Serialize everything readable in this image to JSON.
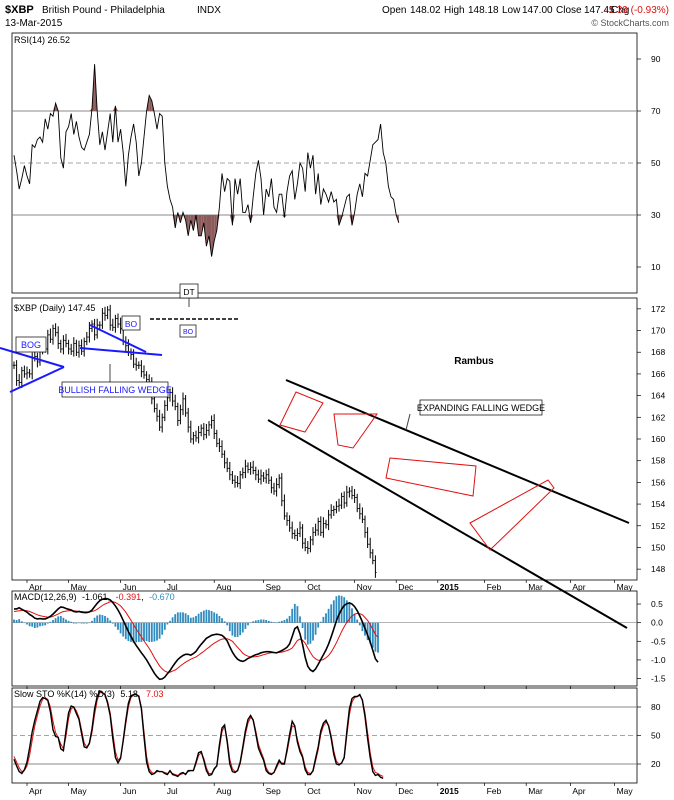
{
  "header": {
    "symbol": "$XBP",
    "name": "British Pound - Philadelphia",
    "exchange": "INDX",
    "date": "13-Mar-2015",
    "open_label": "Open",
    "open": "148.02",
    "high_label": "High",
    "high": "148.18",
    "low_label": "Low",
    "low": "147.00",
    "close_label": "Close",
    "close": "147.45",
    "chg_label": "Chg",
    "chg": "-1.39 (-0.93%)",
    "watermark": "© StockCharts.com"
  },
  "chart_data": [
    {
      "type": "line",
      "panel": "rsi",
      "legend": "RSI(14) 26.52",
      "ylim": [
        0,
        100
      ],
      "yticks": [
        10,
        30,
        50,
        70,
        90
      ],
      "lines": [
        30,
        50,
        70
      ],
      "values": [
        53,
        47,
        40,
        44,
        49,
        45,
        42,
        57,
        56,
        59,
        60,
        58,
        67,
        63,
        69,
        68,
        73,
        70,
        52,
        48,
        62,
        64,
        69,
        61,
        66,
        60,
        56,
        55,
        58,
        61,
        71,
        88,
        70,
        57,
        62,
        55,
        62,
        69,
        58,
        72,
        58,
        63,
        54,
        41,
        53,
        60,
        65,
        58,
        45,
        50,
        60,
        70,
        76,
        74,
        69,
        63,
        69,
        68,
        50,
        41,
        36,
        33,
        25,
        31,
        27,
        31,
        28,
        22,
        28,
        24,
        30,
        22,
        22,
        27,
        18,
        22,
        14,
        20,
        24,
        33,
        46,
        39,
        44,
        43,
        26,
        44,
        38,
        44,
        31,
        31,
        34,
        27,
        37,
        46,
        51,
        44,
        30,
        40,
        37,
        44,
        33,
        31,
        38,
        38,
        29,
        39,
        45,
        47,
        36,
        42,
        50,
        48,
        39,
        54,
        48,
        53,
        38,
        46,
        34,
        40,
        38,
        35,
        39,
        35,
        36,
        26,
        29,
        33,
        37,
        38,
        26,
        31,
        38,
        42,
        37,
        46,
        45,
        51,
        57,
        58,
        59,
        65,
        54,
        50,
        41,
        37,
        36,
        30,
        27
      ]
    },
    {
      "type": "bar",
      "panel": "price",
      "legend": "$XBP (Daily) 147.45",
      "ylim": [
        147,
        173
      ],
      "yticks": [
        148,
        150,
        152,
        154,
        156,
        158,
        160,
        162,
        164,
        166,
        168,
        170,
        172
      ],
      "series": [
        {
          "values": [
            166.8,
            165.4,
            165.2,
            166.3,
            166.0,
            166.1,
            166.0,
            167.5,
            167.6,
            167.1,
            168.3,
            168.6,
            168.3,
            169.6,
            169.2,
            170.2,
            169.8,
            168.8,
            168.3,
            169.1,
            168.8,
            168.3,
            168.1,
            168.8,
            168.0,
            168.6,
            168.1,
            169.0,
            169.4,
            170.2,
            170.6,
            169.6,
            170.5,
            170.5,
            171.6,
            171.4,
            171.9,
            170.5,
            170.3,
            171.1,
            170.6,
            170.2,
            169.0,
            168.6,
            168.0,
            167.8,
            166.9,
            166.8,
            166.8,
            166.2,
            165.9,
            165.5,
            165.1,
            163.7,
            162.8,
            162.1,
            161.1,
            162.0,
            163.1,
            163.8,
            164.3,
            163.5,
            163.0,
            161.7,
            162.7,
            163.7,
            162.4,
            161.1,
            160.0,
            160.3,
            160.1,
            160.6,
            161.0,
            160.4,
            160.8,
            161.3,
            161.7,
            160.5,
            159.6,
            159.3,
            158.6,
            157.8,
            157.3,
            156.7,
            156.2,
            156.0,
            155.9,
            156.7,
            156.9,
            157.5,
            157.2,
            157.4,
            157.1,
            156.7,
            156.3,
            156.6,
            156.4,
            156.7,
            156.2,
            155.5,
            155.2,
            155.8,
            156.4,
            154.3,
            152.9,
            152.5,
            151.8,
            151.3,
            151.1,
            151.3,
            151.8,
            150.4,
            150.0,
            149.9,
            150.7,
            151.4,
            151.6,
            152.4,
            151.4,
            152.2,
            152.1,
            153.0,
            153.4,
            153.5,
            153.8,
            153.9,
            154.7,
            154.1,
            155.1,
            155.2,
            154.8,
            154.6,
            153.6,
            153.1,
            152.6,
            151.4,
            150.3,
            149.5,
            148.8,
            147.7
          ]
        }
      ],
      "annotations": [
        "BOG",
        "BULLISH FALLING WEDGE",
        "BO",
        "DT",
        "BO",
        "EXPANDING FALLING WEDGE",
        "Rambus"
      ]
    },
    {
      "type": "line",
      "panel": "macd",
      "legend_main": "MACD(12,26,9)",
      "macd_value": "-1.061",
      "signal_value": "-0.391",
      "hist_value": "-0.670",
      "ylim": [
        -1.7,
        0.85
      ],
      "yticks": [
        -1.5,
        -1.0,
        -0.5,
        0.0,
        0.5
      ],
      "series": [
        {
          "name": "MACD",
          "values": [
            0.37,
            0.37,
            0.4,
            0.36,
            0.32,
            0.28,
            0.22,
            0.18,
            0.12,
            0.1,
            0.11,
            0.1,
            0.1,
            0.13,
            0.17,
            0.23,
            0.3,
            0.37,
            0.42,
            0.41,
            0.38,
            0.36,
            0.34,
            0.3,
            0.29,
            0.3,
            0.28,
            0.27,
            0.27,
            0.29,
            0.34,
            0.43,
            0.52,
            0.59,
            0.63,
            0.65,
            0.64,
            0.61,
            0.54,
            0.45,
            0.34,
            0.21,
            0.06,
            -0.09,
            -0.24,
            -0.37,
            -0.5,
            -0.61,
            -0.71,
            -0.81,
            -0.9,
            -1.0,
            -1.12,
            -1.24,
            -1.36,
            -1.45,
            -1.52,
            -1.51,
            -1.46,
            -1.37,
            -1.29,
            -1.18,
            -1.08,
            -0.99,
            -0.93,
            -0.88,
            -0.85,
            -0.85,
            -0.87,
            -0.83,
            -0.77,
            -0.67,
            -0.58,
            -0.5,
            -0.42,
            -0.38,
            -0.34,
            -0.32,
            -0.31,
            -0.32,
            -0.34,
            -0.4,
            -0.49,
            -0.65,
            -0.79,
            -0.9,
            -0.98,
            -1.02,
            -1.04,
            -1.01,
            -0.96,
            -0.93,
            -0.89,
            -0.86,
            -0.84,
            -0.81,
            -0.79,
            -0.78,
            -0.78,
            -0.79,
            -0.8,
            -0.81,
            -0.78,
            -0.75,
            -0.71,
            -0.66,
            -0.57,
            -0.37,
            -0.16,
            -0.11,
            -0.3,
            -0.59,
            -0.93,
            -1.17,
            -1.27,
            -1.31,
            -1.24,
            -1.12,
            -0.99,
            -0.86,
            -0.73,
            -0.57,
            -0.38,
            -0.17,
            0.05,
            0.22,
            0.36,
            0.46,
            0.51,
            0.53,
            0.5,
            0.43,
            0.32,
            0.18,
            0.02,
            -0.15,
            -0.33,
            -0.52,
            -0.74,
            -0.97,
            -1.06
          ]
        },
        {
          "name": "Signal",
          "values": [
            0.3,
            0.31,
            0.32,
            0.33,
            0.33,
            0.32,
            0.3,
            0.27,
            0.24,
            0.21,
            0.19,
            0.17,
            0.16,
            0.15,
            0.15,
            0.17,
            0.2,
            0.23,
            0.27,
            0.3,
            0.31,
            0.32,
            0.32,
            0.32,
            0.31,
            0.3,
            0.3,
            0.29,
            0.29,
            0.29,
            0.3,
            0.32,
            0.36,
            0.41,
            0.46,
            0.5,
            0.53,
            0.56,
            0.56,
            0.54,
            0.5,
            0.45,
            0.37,
            0.28,
            0.17,
            0.06,
            -0.05,
            -0.17,
            -0.28,
            -0.38,
            -0.49,
            -0.59,
            -0.69,
            -0.81,
            -0.94,
            -1.05,
            -1.16,
            -1.24,
            -1.3,
            -1.33,
            -1.33,
            -1.3,
            -1.27,
            -1.22,
            -1.16,
            -1.11,
            -1.06,
            -1.02,
            -0.98,
            -0.95,
            -0.92,
            -0.87,
            -0.82,
            -0.77,
            -0.71,
            -0.66,
            -0.6,
            -0.55,
            -0.51,
            -0.47,
            -0.44,
            -0.43,
            -0.43,
            -0.46,
            -0.5,
            -0.58,
            -0.66,
            -0.74,
            -0.82,
            -0.87,
            -0.9,
            -0.92,
            -0.92,
            -0.91,
            -0.9,
            -0.88,
            -0.86,
            -0.84,
            -0.82,
            -0.81,
            -0.81,
            -0.81,
            -0.8,
            -0.79,
            -0.77,
            -0.75,
            -0.72,
            -0.68,
            -0.58,
            -0.48,
            -0.44,
            -0.47,
            -0.55,
            -0.68,
            -0.8,
            -0.91,
            -0.97,
            -1.01,
            -1.01,
            -0.99,
            -0.94,
            -0.88,
            -0.79,
            -0.67,
            -0.54,
            -0.39,
            -0.24,
            -0.11,
            0.01,
            0.1,
            0.18,
            0.23,
            0.25,
            0.24,
            0.21,
            0.14,
            0.06,
            -0.05,
            -0.18,
            -0.32,
            -0.39
          ]
        }
      ]
    },
    {
      "type": "line",
      "panel": "sto",
      "legend_main": "Slow STO %K(14) %D(3)",
      "k_value": "5.18",
      "d_value": "7.03",
      "ylim": [
        0,
        100
      ],
      "yticks": [
        20,
        50,
        80
      ],
      "lines": [
        20,
        50,
        80
      ],
      "series": [
        {
          "name": "%K",
          "values": [
            25,
            18,
            12,
            10,
            14,
            22,
            37,
            54,
            66,
            76,
            86,
            90,
            89,
            87,
            75,
            56,
            49,
            48,
            36,
            34,
            55,
            74,
            81,
            80,
            73,
            67,
            52,
            38,
            37,
            42,
            57,
            78,
            91,
            97,
            95,
            93,
            84,
            71,
            47,
            27,
            21,
            26,
            45,
            66,
            84,
            92,
            93,
            93,
            91,
            78,
            49,
            22,
            12,
            9,
            10,
            13,
            12,
            12,
            10,
            9,
            13,
            9,
            8,
            7,
            10,
            11,
            9,
            13,
            13,
            13,
            22,
            32,
            33,
            24,
            13,
            8,
            9,
            15,
            18,
            40,
            58,
            61,
            43,
            20,
            12,
            11,
            13,
            22,
            38,
            55,
            67,
            71,
            66,
            52,
            37,
            30,
            24,
            13,
            10,
            9,
            11,
            18,
            24,
            20,
            20,
            35,
            51,
            65,
            60,
            43,
            33,
            27,
            14,
            9,
            9,
            13,
            26,
            38,
            55,
            63,
            66,
            60,
            47,
            30,
            20,
            19,
            21,
            27,
            54,
            78,
            89,
            91,
            91,
            93,
            87,
            70,
            47,
            27,
            12,
            8,
            9,
            6,
            5
          ]
        },
        {
          "name": "%D",
          "values": [
            28,
            22,
            16,
            12,
            13,
            18,
            29,
            45,
            60,
            71,
            81,
            88,
            90,
            88,
            80,
            65,
            53,
            48,
            41,
            36,
            49,
            68,
            78,
            80,
            76,
            69,
            56,
            42,
            38,
            41,
            53,
            72,
            87,
            95,
            95,
            93,
            86,
            74,
            53,
            33,
            24,
            27,
            43,
            62,
            80,
            90,
            93,
            93,
            92,
            80,
            54,
            28,
            15,
            11,
            10,
            12,
            12,
            12,
            11,
            10,
            12,
            10,
            9,
            8,
            9,
            10,
            10,
            12,
            13,
            13,
            20,
            29,
            32,
            26,
            16,
            10,
            10,
            14,
            18,
            36,
            54,
            60,
            46,
            25,
            15,
            12,
            13,
            20,
            35,
            51,
            63,
            69,
            67,
            55,
            41,
            33,
            26,
            16,
            11,
            10,
            11,
            16,
            22,
            21,
            21,
            32,
            47,
            60,
            59,
            46,
            36,
            29,
            17,
            11,
            10,
            12,
            23,
            35,
            51,
            60,
            64,
            61,
            50,
            34,
            23,
            20,
            21,
            26,
            49,
            72,
            85,
            90,
            91,
            92,
            88,
            74,
            53,
            32,
            17,
            11,
            10,
            8,
            7
          ]
        }
      ]
    }
  ],
  "x_axis": {
    "ticks": [
      {
        "label": "Apr",
        "idx": 5
      },
      {
        "label": "May",
        "idx": 21
      },
      {
        "label": "Jun",
        "idx": 41
      },
      {
        "label": "Jul",
        "idx": 58
      },
      {
        "label": "Aug",
        "idx": 77
      },
      {
        "label": "Sep",
        "idx": 96
      },
      {
        "label": "Oct",
        "idx": 112
      },
      {
        "label": "Nov",
        "idx": 131
      },
      {
        "label": "Dec",
        "idx": 147
      },
      {
        "label": "2015",
        "idx": 163
      },
      {
        "label": "Feb",
        "idx": 181
      },
      {
        "label": "Mar",
        "idx": 197
      },
      {
        "label": "Apr",
        "idx": 214
      },
      {
        "label": "May",
        "idx": 231
      }
    ]
  },
  "colors": {
    "price_line": "#000000",
    "macd_line": "#000000",
    "signal_line": "#e01010",
    "histogram": "#2e8cc0",
    "rsi_fill": "#8b5a5a",
    "pattern_blue": "#1a1aff",
    "pattern_red": "#e01010",
    "label_blue": "#1a1aff",
    "chg_red": "#e01010",
    "grid": "#888888"
  }
}
